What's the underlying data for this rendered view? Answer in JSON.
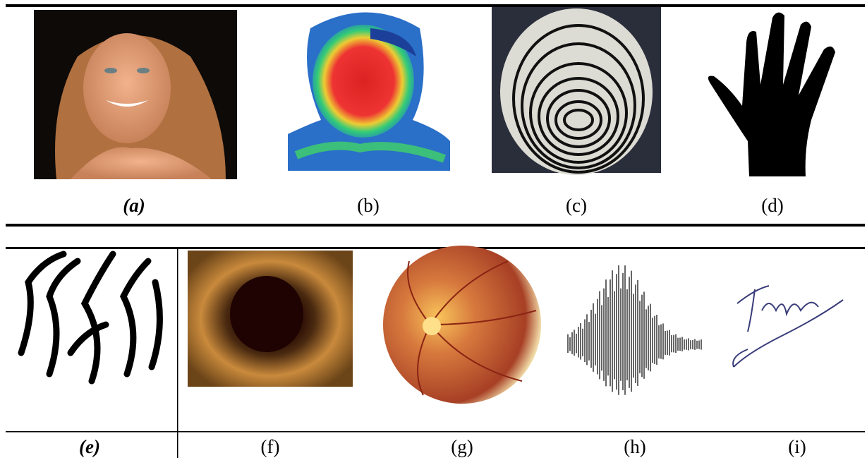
{
  "figure": {
    "top_row": [
      "(a)",
      "(b)",
      "(c)",
      "(d)"
    ],
    "bottom_row": [
      "(e)",
      "(f)",
      "(g)",
      "(h)",
      "(i)"
    ]
  }
}
